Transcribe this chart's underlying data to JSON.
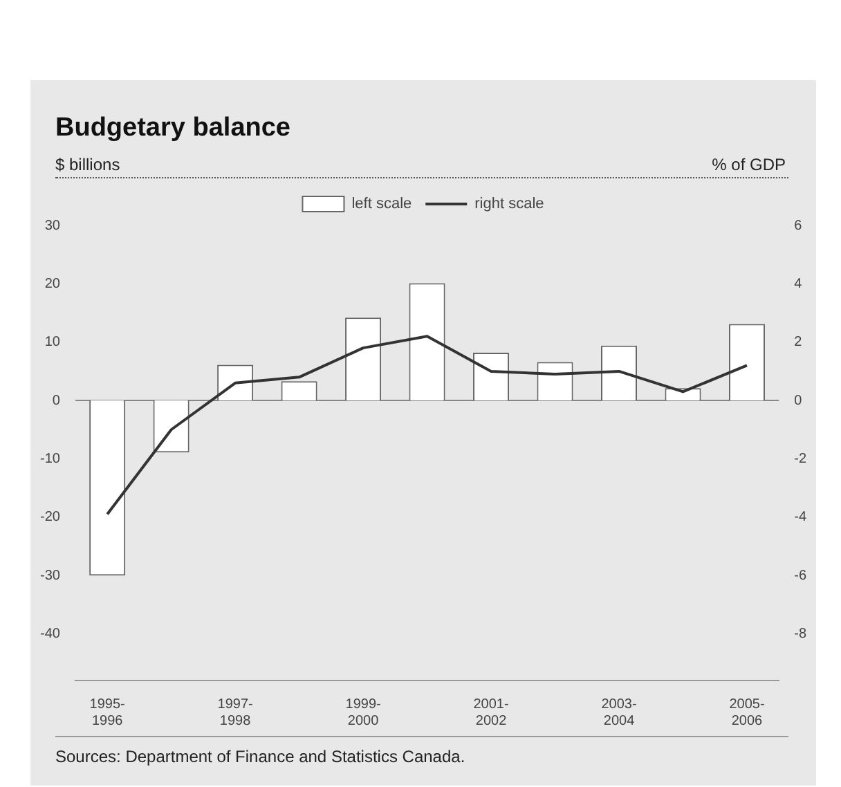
{
  "chart_data": {
    "type": "bar",
    "title": "Budgetary balance",
    "ylabel": "$ billions",
    "y2label": "% of GDP",
    "categories": [
      "1995-1996",
      null,
      "1997-1998",
      null,
      "1999-2000",
      null,
      "2001-2002",
      null,
      "2003-2004",
      null,
      "2005-2006"
    ],
    "series": [
      {
        "name": "left scale",
        "color": "#ffffff",
        "values": [
          -30,
          -8.9,
          6.1,
          3.3,
          14.2,
          20.1,
          8.2,
          6.6,
          9.4,
          2.1,
          13.1
        ]
      },
      {
        "name": "right scale",
        "type": "line",
        "axis": "y2",
        "color": "#333333",
        "values": [
          -3.9,
          -1.0,
          0.6,
          0.8,
          1.8,
          2.2,
          1.0,
          0.9,
          1.0,
          0.3,
          1.2
        ]
      }
    ],
    "ylim": [
      -48,
      30
    ],
    "yticks": [
      30,
      20,
      10,
      0,
      -10,
      -20,
      -30,
      -40
    ],
    "y2lim": [
      -9.6,
      6
    ],
    "y2ticks": [
      6,
      4,
      2,
      0,
      -2,
      -4,
      -6,
      -8
    ],
    "grid": false,
    "ref_lines": [
      {
        "axis": "y",
        "value": 0,
        "color": "#888888"
      }
    ],
    "legend": "top",
    "marker": "none",
    "line_style": "solid",
    "annotations": [
      "Sources: Department of Finance and Statistics Canada."
    ]
  }
}
